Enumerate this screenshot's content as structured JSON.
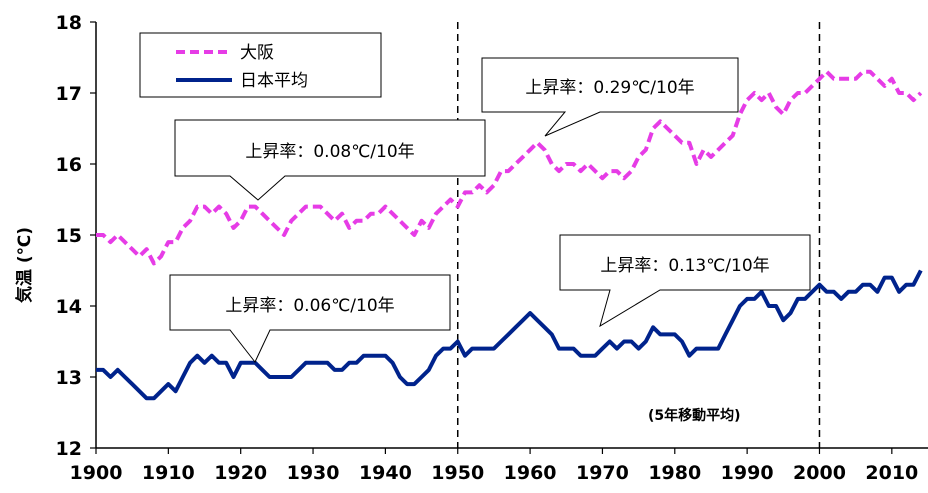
{
  "chart_data": {
    "type": "line",
    "ylabel": "気温 (℃)",
    "xlim": [
      1900,
      2015
    ],
    "ylim": [
      12,
      18
    ],
    "x_ticks": [
      1900,
      1910,
      1920,
      1930,
      1940,
      1950,
      1960,
      1970,
      1980,
      1990,
      2000,
      2010
    ],
    "y_ticks": [
      12,
      13,
      14,
      15,
      16,
      17,
      18
    ],
    "grid": false,
    "vlines": [
      1950,
      2000
    ],
    "note": "(5年移動平均)",
    "legend": {
      "position": "top-left"
    },
    "series": [
      {
        "name": "大阪",
        "color": "#e63ce6",
        "style": "dashed",
        "x": [
          1900,
          1901,
          1902,
          1903,
          1904,
          1905,
          1906,
          1907,
          1908,
          1909,
          1910,
          1911,
          1912,
          1913,
          1914,
          1915,
          1916,
          1917,
          1918,
          1919,
          1920,
          1921,
          1922,
          1923,
          1924,
          1925,
          1926,
          1927,
          1928,
          1929,
          1930,
          1931,
          1932,
          1933,
          1934,
          1935,
          1936,
          1937,
          1938,
          1939,
          1940,
          1941,
          1942,
          1943,
          1944,
          1945,
          1946,
          1947,
          1948,
          1949,
          1950,
          1951,
          1952,
          1953,
          1954,
          1955,
          1956,
          1957,
          1958,
          1959,
          1960,
          1961,
          1962,
          1963,
          1964,
          1965,
          1966,
          1967,
          1968,
          1969,
          1970,
          1971,
          1972,
          1973,
          1974,
          1975,
          1976,
          1977,
          1978,
          1979,
          1980,
          1981,
          1982,
          1983,
          1984,
          1985,
          1986,
          1987,
          1988,
          1989,
          1990,
          1991,
          1992,
          1993,
          1994,
          1995,
          1996,
          1997,
          1998,
          1999,
          2000,
          2001,
          2002,
          2003,
          2004,
          2005,
          2006,
          2007,
          2008,
          2009,
          2010,
          2011,
          2012,
          2013,
          2014
        ],
        "y": [
          15.0,
          15.0,
          14.9,
          15.0,
          14.9,
          14.8,
          14.7,
          14.8,
          14.6,
          14.7,
          14.9,
          14.9,
          15.1,
          15.2,
          15.4,
          15.4,
          15.3,
          15.4,
          15.3,
          15.1,
          15.2,
          15.4,
          15.4,
          15.3,
          15.2,
          15.1,
          15.0,
          15.2,
          15.3,
          15.4,
          15.4,
          15.4,
          15.3,
          15.2,
          15.3,
          15.1,
          15.2,
          15.2,
          15.3,
          15.3,
          15.4,
          15.3,
          15.2,
          15.1,
          15.0,
          15.2,
          15.1,
          15.3,
          15.4,
          15.5,
          15.4,
          15.6,
          15.6,
          15.7,
          15.6,
          15.7,
          15.9,
          15.9,
          16.0,
          16.1,
          16.2,
          16.3,
          16.2,
          16.0,
          15.9,
          16.0,
          16.0,
          15.9,
          16.0,
          15.9,
          15.8,
          15.9,
          15.9,
          15.8,
          15.9,
          16.1,
          16.2,
          16.5,
          16.6,
          16.5,
          16.4,
          16.3,
          16.3,
          16.0,
          16.2,
          16.1,
          16.2,
          16.3,
          16.4,
          16.7,
          16.9,
          17.0,
          16.9,
          17.0,
          16.8,
          16.7,
          16.9,
          17.0,
          17.0,
          17.1,
          17.2,
          17.3,
          17.2,
          17.2,
          17.2,
          17.2,
          17.3,
          17.3,
          17.2,
          17.1,
          17.2,
          17.0,
          17.0,
          16.9,
          17.0
        ]
      },
      {
        "name": "日本平均",
        "color": "#00238c",
        "style": "solid",
        "x": [
          1900,
          1901,
          1902,
          1903,
          1904,
          1905,
          1906,
          1907,
          1908,
          1909,
          1910,
          1911,
          1912,
          1913,
          1914,
          1915,
          1916,
          1917,
          1918,
          1919,
          1920,
          1921,
          1922,
          1923,
          1924,
          1925,
          1926,
          1927,
          1928,
          1929,
          1930,
          1931,
          1932,
          1933,
          1934,
          1935,
          1936,
          1937,
          1938,
          1939,
          1940,
          1941,
          1942,
          1943,
          1944,
          1945,
          1946,
          1947,
          1948,
          1949,
          1950,
          1951,
          1952,
          1953,
          1954,
          1955,
          1956,
          1957,
          1958,
          1959,
          1960,
          1961,
          1962,
          1963,
          1964,
          1965,
          1966,
          1967,
          1968,
          1969,
          1970,
          1971,
          1972,
          1973,
          1974,
          1975,
          1976,
          1977,
          1978,
          1979,
          1980,
          1981,
          1982,
          1983,
          1984,
          1985,
          1986,
          1987,
          1988,
          1989,
          1990,
          1991,
          1992,
          1993,
          1994,
          1995,
          1996,
          1997,
          1998,
          1999,
          2000,
          2001,
          2002,
          2003,
          2004,
          2005,
          2006,
          2007,
          2008,
          2009,
          2010,
          2011,
          2012,
          2013,
          2014
        ],
        "y": [
          13.1,
          13.1,
          13.0,
          13.1,
          13.0,
          12.9,
          12.8,
          12.7,
          12.7,
          12.8,
          12.9,
          12.8,
          13.0,
          13.2,
          13.3,
          13.2,
          13.3,
          13.2,
          13.2,
          13.0,
          13.2,
          13.2,
          13.2,
          13.1,
          13.0,
          13.0,
          13.0,
          13.0,
          13.1,
          13.2,
          13.2,
          13.2,
          13.2,
          13.1,
          13.1,
          13.2,
          13.2,
          13.3,
          13.3,
          13.3,
          13.3,
          13.2,
          13.0,
          12.9,
          12.9,
          13.0,
          13.1,
          13.3,
          13.4,
          13.4,
          13.5,
          13.3,
          13.4,
          13.4,
          13.4,
          13.4,
          13.5,
          13.6,
          13.7,
          13.8,
          13.9,
          13.8,
          13.7,
          13.6,
          13.4,
          13.4,
          13.4,
          13.3,
          13.3,
          13.3,
          13.4,
          13.5,
          13.4,
          13.5,
          13.5,
          13.4,
          13.5,
          13.7,
          13.6,
          13.6,
          13.6,
          13.5,
          13.3,
          13.4,
          13.4,
          13.4,
          13.4,
          13.6,
          13.8,
          14.0,
          14.1,
          14.1,
          14.2,
          14.0,
          14.0,
          13.8,
          13.9,
          14.1,
          14.1,
          14.2,
          14.3,
          14.2,
          14.2,
          14.1,
          14.2,
          14.2,
          14.3,
          14.3,
          14.2,
          14.4,
          14.4,
          14.2,
          14.3,
          14.3,
          14.5
        ]
      }
    ],
    "annotations": [
      {
        "text": "上昇率：0.08℃/10年",
        "series": 0
      },
      {
        "text": "上昇率：0.29℃/10年",
        "series": 0
      },
      {
        "text": "上昇率：0.06℃/10年",
        "series": 1
      },
      {
        "text": "上昇率：0.13℃/10年",
        "series": 1
      }
    ]
  }
}
